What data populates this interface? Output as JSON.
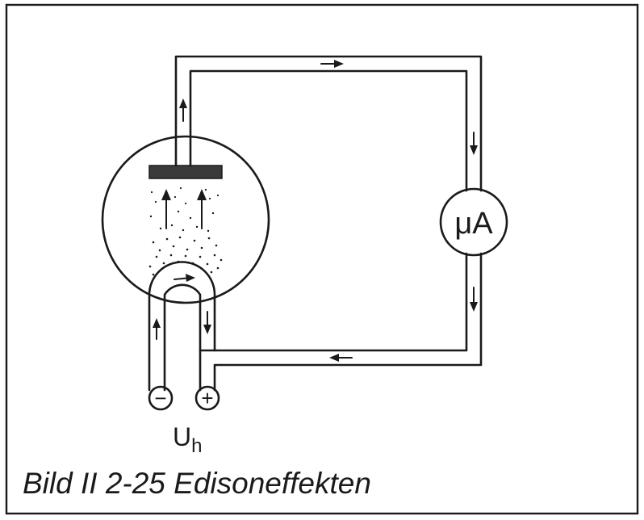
{
  "figure": {
    "meter_label": "μA",
    "heater_voltage_label": "U",
    "heater_voltage_subscript": "h",
    "minus_symbol": "−",
    "plus_symbol": "+",
    "caption": "Bild II 2-25  Edisoneffekten",
    "ink_color": "#1a1a1a",
    "anode_color": "#3a3a3a"
  }
}
